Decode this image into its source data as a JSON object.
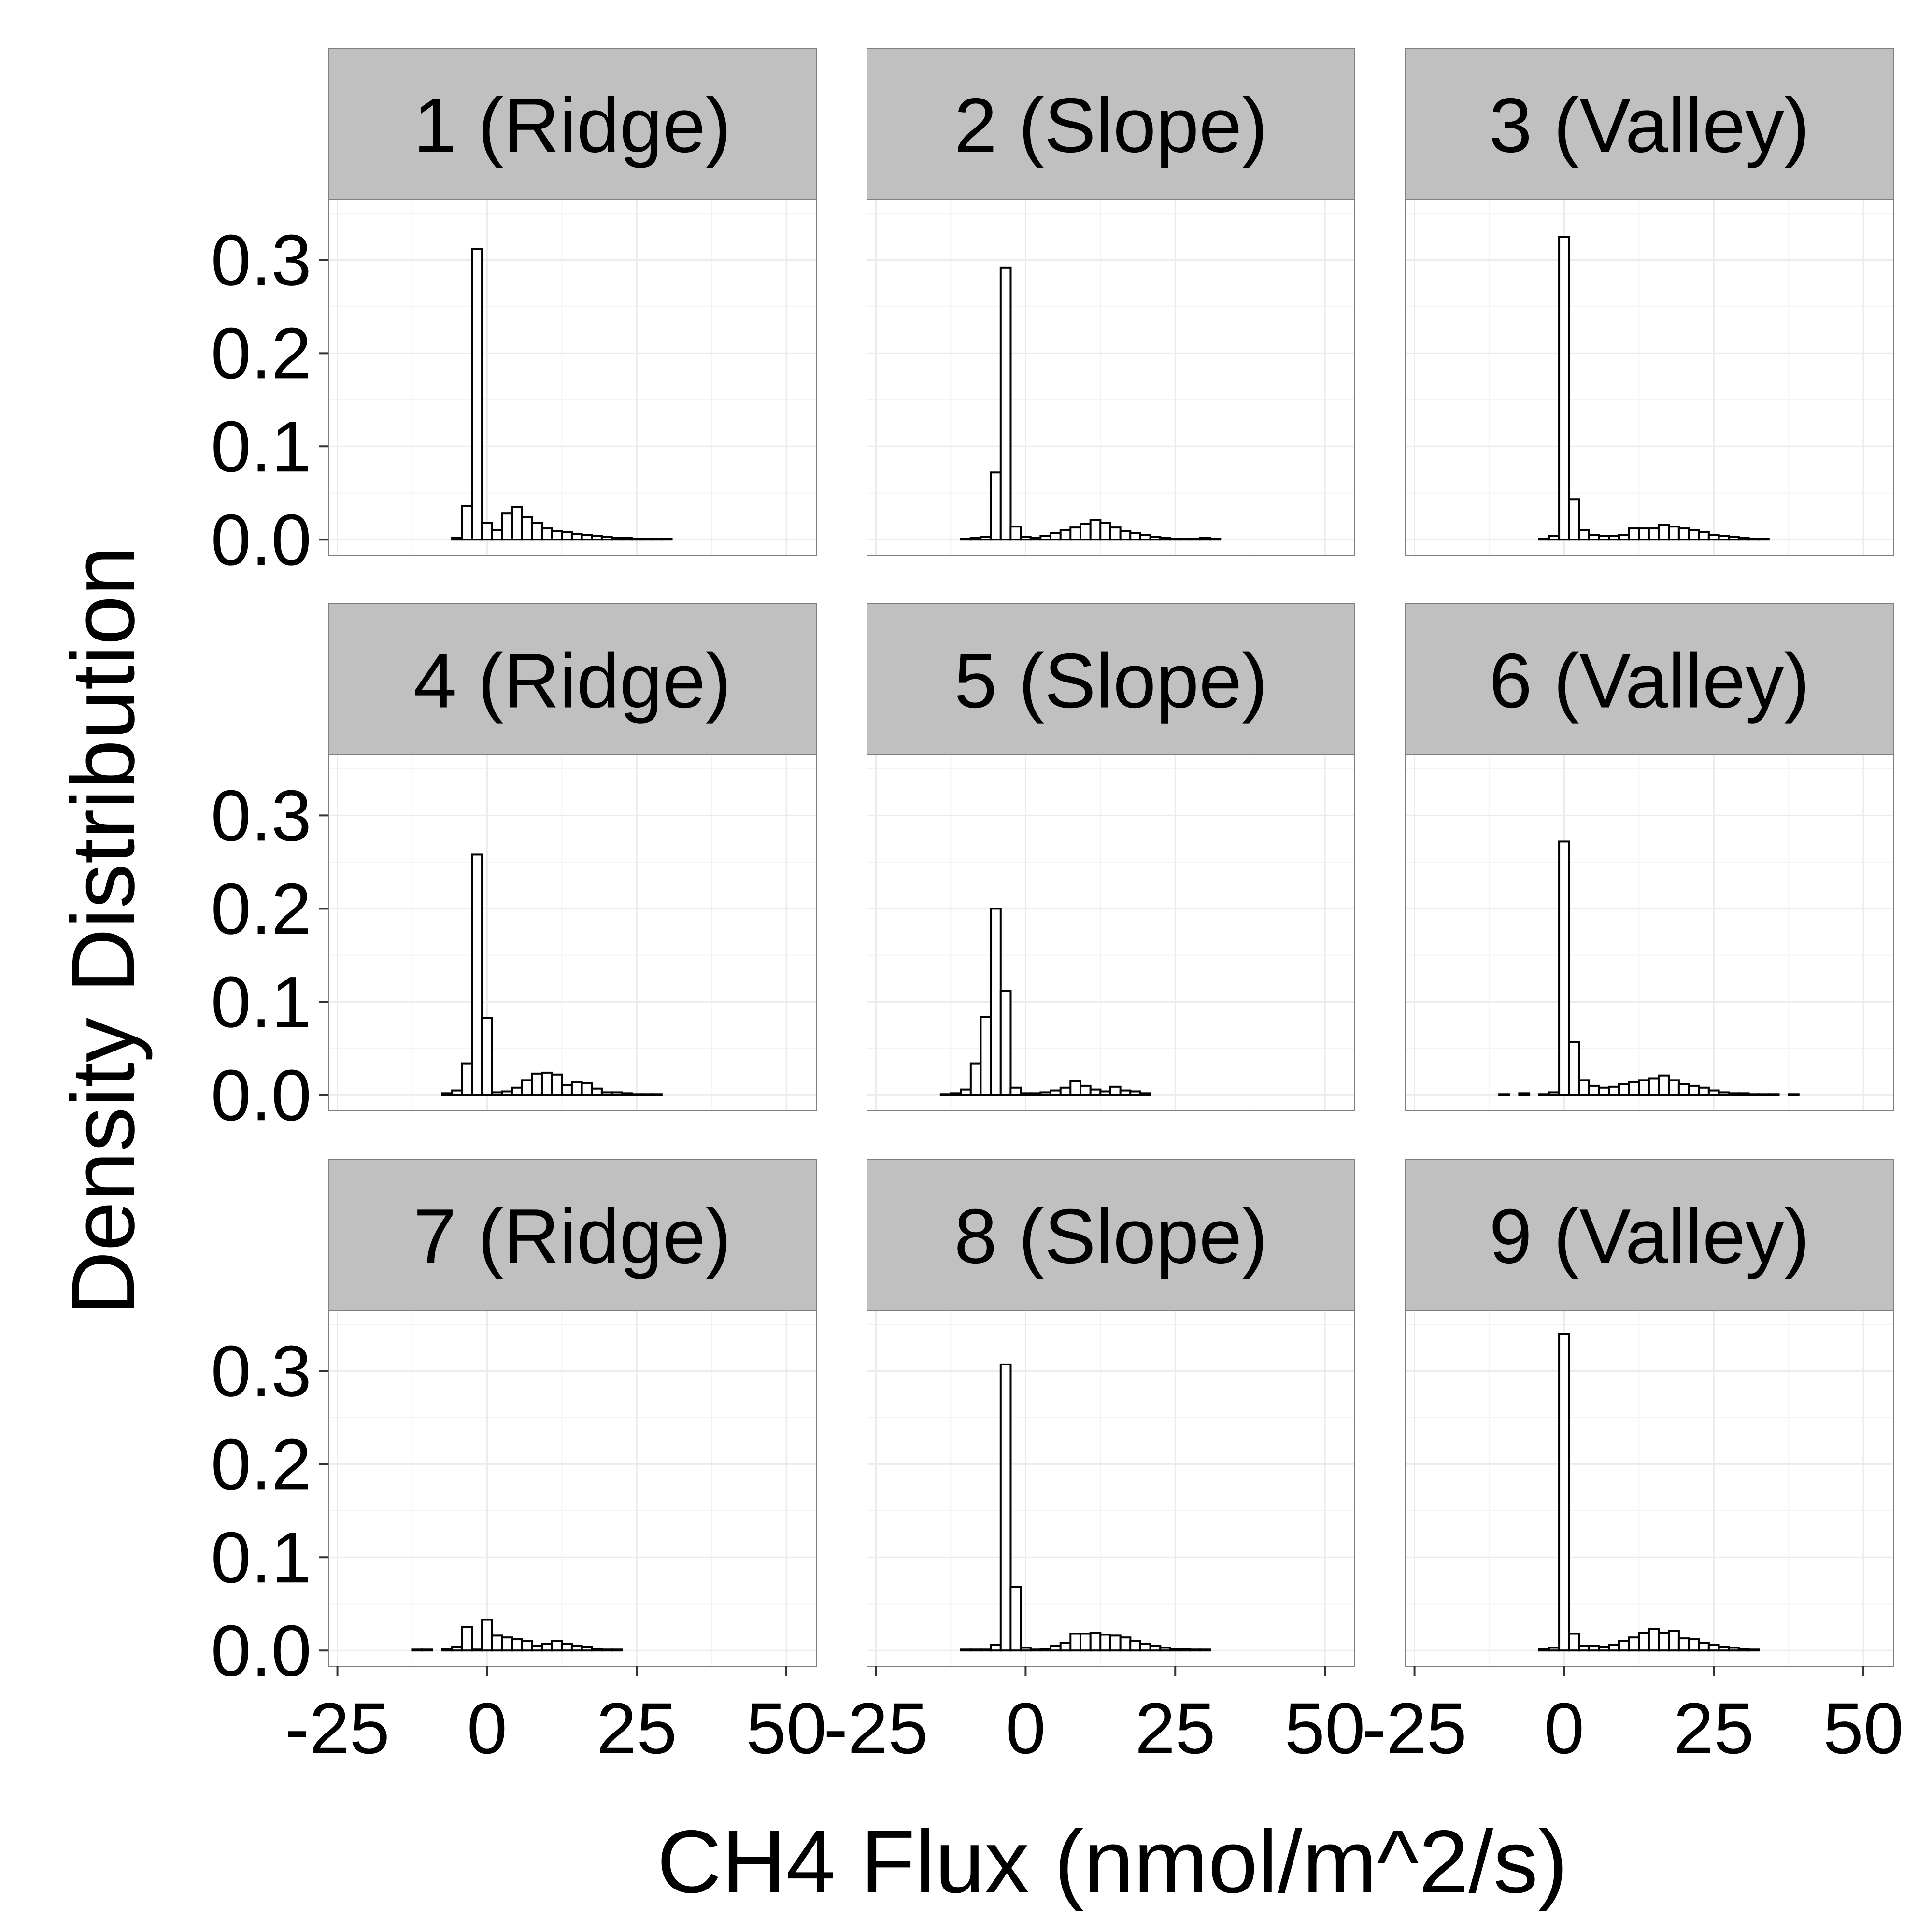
{
  "figure": {
    "xlabel": "CH4 Flux (nmol/m^2/s)",
    "ylabel": "Density Distribution",
    "x_ticks": [
      "-25",
      "0",
      "25",
      "50"
    ],
    "y_ticks": [
      "0.0",
      "0.1",
      "0.2",
      "0.3"
    ]
  },
  "colors": {
    "strip": "#c0c0c0",
    "grid": "#ebebeb",
    "bar_fill": "#ffffff",
    "bar_stroke": "#000000",
    "panel_border": "#7f7f7f"
  },
  "chart_data": [
    {
      "type": "bar",
      "panel": "1 (Ridge)",
      "bin_width": 1.67,
      "xlim": [
        -26.5,
        55
      ],
      "ylim": [
        -0.017,
        0.365
      ],
      "x": [
        -25,
        -23.33,
        -21.67,
        -20,
        -18.33,
        -16.67,
        -15,
        -13.33,
        -11.67,
        -10,
        -8.33,
        -6.67,
        -5,
        -3.33,
        -1.67,
        0,
        1.67,
        3.33,
        5,
        6.67,
        8.33,
        10,
        11.67,
        13.33,
        15,
        16.67,
        18.33,
        20,
        21.67,
        23.33,
        25,
        26.67,
        28.33,
        30,
        31.67,
        33.33,
        35,
        36.67,
        38.33,
        40,
        41.67,
        43.33,
        45,
        46.67,
        48.33,
        50
      ],
      "values": [
        0,
        0,
        0,
        0,
        0,
        0,
        0,
        0,
        0,
        0,
        0,
        0,
        0.002,
        0.036,
        0.312,
        0.018,
        0.01,
        0.028,
        0.035,
        0.024,
        0.018,
        0.012,
        0.009,
        0.008,
        0.006,
        0.005,
        0.004,
        0.003,
        0.002,
        0.002,
        0.001,
        0.001,
        0.001,
        0.001,
        0,
        0,
        0,
        0,
        0,
        0,
        0,
        0,
        0,
        0,
        0,
        0
      ]
    },
    {
      "type": "bar",
      "panel": "2 (Slope)",
      "bin_width": 1.67,
      "xlim": [
        -26.5,
        55
      ],
      "ylim": [
        -0.017,
        0.365
      ],
      "x": [
        -25,
        -23.33,
        -21.67,
        -20,
        -18.33,
        -16.67,
        -15,
        -13.33,
        -11.67,
        -10,
        -8.33,
        -6.67,
        -5,
        -3.33,
        -1.67,
        0,
        1.67,
        3.33,
        5,
        6.67,
        8.33,
        10,
        11.67,
        13.33,
        15,
        16.67,
        18.33,
        20,
        21.67,
        23.33,
        25,
        26.67,
        28.33,
        30,
        31.67,
        33.33,
        35,
        36.67,
        38.33,
        40,
        41.67,
        43.33,
        45,
        46.67,
        48.33,
        50
      ],
      "values": [
        0,
        0,
        0,
        0,
        0,
        0,
        0,
        0,
        0,
        0.001,
        0.002,
        0.003,
        0.072,
        0.292,
        0.014,
        0.003,
        0.002,
        0.004,
        0.007,
        0.01,
        0.013,
        0.017,
        0.021,
        0.018,
        0.013,
        0.009,
        0.007,
        0.005,
        0.003,
        0.002,
        0.001,
        0.001,
        0.001,
        0.002,
        0.001,
        0,
        0,
        0,
        0,
        0,
        0,
        0,
        0,
        0,
        0,
        0
      ]
    },
    {
      "type": "bar",
      "panel": "3 (Valley)",
      "bin_width": 1.67,
      "xlim": [
        -26.5,
        55
      ],
      "ylim": [
        -0.017,
        0.365
      ],
      "x": [
        -25,
        -23.33,
        -21.67,
        -20,
        -18.33,
        -16.67,
        -15,
        -13.33,
        -11.67,
        -10,
        -8.33,
        -6.67,
        -5,
        -3.33,
        -1.67,
        0,
        1.67,
        3.33,
        5,
        6.67,
        8.33,
        10,
        11.67,
        13.33,
        15,
        16.67,
        18.33,
        20,
        21.67,
        23.33,
        25,
        26.67,
        28.33,
        30,
        31.67,
        33.33,
        35,
        36.67,
        38.33,
        40,
        41.67,
        43.33,
        45,
        46.67,
        48.33,
        50
      ],
      "values": [
        0,
        0,
        0,
        0,
        0,
        0,
        0,
        0,
        0,
        0,
        0,
        0,
        0,
        0.001,
        0.004,
        0.325,
        0.043,
        0.01,
        0.005,
        0.004,
        0.004,
        0.005,
        0.012,
        0.012,
        0.012,
        0.016,
        0.014,
        0.012,
        0.01,
        0.008,
        0.005,
        0.004,
        0.003,
        0.002,
        0.001,
        0.001,
        0,
        0,
        0,
        0,
        0,
        0,
        0,
        0,
        0,
        0
      ]
    },
    {
      "type": "bar",
      "panel": "4 (Ridge)",
      "bin_width": 1.67,
      "xlim": [
        -26.5,
        55
      ],
      "ylim": [
        -0.017,
        0.365
      ],
      "x": [
        -25,
        -23.33,
        -21.67,
        -20,
        -18.33,
        -16.67,
        -15,
        -13.33,
        -11.67,
        -10,
        -8.33,
        -6.67,
        -5,
        -3.33,
        -1.67,
        0,
        1.67,
        3.33,
        5,
        6.67,
        8.33,
        10,
        11.67,
        13.33,
        15,
        16.67,
        18.33,
        20,
        21.67,
        23.33,
        25,
        26.67,
        28.33,
        30,
        31.67,
        33.33,
        35,
        36.67,
        38.33,
        40,
        41.67,
        43.33,
        45,
        46.67,
        48.33,
        50
      ],
      "values": [
        0,
        0,
        0,
        0,
        0,
        0,
        0,
        0,
        0,
        0,
        0,
        0.002,
        0.005,
        0.034,
        0.258,
        0.083,
        0.003,
        0.004,
        0.008,
        0.016,
        0.023,
        0.024,
        0.022,
        0.011,
        0.014,
        0.013,
        0.007,
        0.003,
        0.003,
        0.002,
        0.001,
        0.001,
        0.001,
        0,
        0,
        0,
        0,
        0,
        0,
        0,
        0,
        0,
        0,
        0,
        0,
        0
      ]
    },
    {
      "type": "bar",
      "panel": "5 (Slope)",
      "bin_width": 1.67,
      "xlim": [
        -26.5,
        55
      ],
      "ylim": [
        -0.017,
        0.365
      ],
      "x": [
        -25,
        -23.33,
        -21.67,
        -20,
        -18.33,
        -16.67,
        -15,
        -13.33,
        -11.67,
        -10,
        -8.33,
        -6.67,
        -5,
        -3.33,
        -1.67,
        0,
        1.67,
        3.33,
        5,
        6.67,
        8.33,
        10,
        11.67,
        13.33,
        15,
        16.67,
        18.33,
        20,
        21.67,
        23.33,
        25,
        26.67,
        28.33,
        30,
        31.67,
        33.33,
        35,
        36.67,
        38.33,
        40,
        41.67,
        43.33,
        45,
        46.67,
        48.33,
        50
      ],
      "values": [
        0,
        0,
        0,
        0,
        0,
        0,
        0,
        0.001,
        0.002,
        0.006,
        0.034,
        0.084,
        0.2,
        0.112,
        0.008,
        0.002,
        0.002,
        0.003,
        0.005,
        0.008,
        0.015,
        0.01,
        0.006,
        0.004,
        0.009,
        0.005,
        0.004,
        0.002,
        0,
        0,
        0,
        0,
        0,
        0,
        0,
        0,
        0,
        0,
        0,
        0,
        0,
        0,
        0,
        0,
        0,
        0
      ]
    },
    {
      "type": "bar",
      "panel": "6 (Valley)",
      "bin_width": 1.67,
      "xlim": [
        -26.5,
        55
      ],
      "ylim": [
        -0.017,
        0.365
      ],
      "x": [
        -25,
        -23.33,
        -21.67,
        -20,
        -18.33,
        -16.67,
        -15,
        -13.33,
        -11.67,
        -10,
        -8.33,
        -6.67,
        -5,
        -3.33,
        -1.67,
        0,
        1.67,
        3.33,
        5,
        6.67,
        8.33,
        10,
        11.67,
        13.33,
        15,
        16.67,
        18.33,
        20,
        21.67,
        23.33,
        25,
        26.67,
        28.33,
        30,
        31.67,
        33.33,
        35,
        36.67,
        38.33,
        40,
        41.67,
        43.33,
        45,
        46.67,
        48.33,
        50
      ],
      "values": [
        0,
        0,
        0,
        0,
        0,
        0,
        0,
        0,
        0,
        0.001,
        0,
        0.002,
        0,
        0.001,
        0.003,
        0.272,
        0.057,
        0.016,
        0.01,
        0.008,
        0.009,
        0.012,
        0.014,
        0.016,
        0.018,
        0.021,
        0.016,
        0.012,
        0.01,
        0.008,
        0.005,
        0.003,
        0.002,
        0.002,
        0.001,
        0.001,
        0.001,
        0,
        0.001,
        0,
        0,
        0,
        0,
        0,
        0,
        0
      ]
    },
    {
      "type": "bar",
      "panel": "7 (Ridge)",
      "bin_width": 1.67,
      "xlim": [
        -26.5,
        55
      ],
      "ylim": [
        -0.017,
        0.365
      ],
      "x": [
        -25,
        -23.33,
        -21.67,
        -20,
        -18.33,
        -16.67,
        -15,
        -13.33,
        -11.67,
        -10,
        -8.33,
        -6.67,
        -5,
        -3.33,
        -1.67,
        0,
        1.67,
        3.33,
        5,
        6.67,
        8.33,
        10,
        11.67,
        13.33,
        15,
        16.67,
        18.33,
        20,
        21.67,
        23.33,
        25,
        26.67,
        28.33,
        30,
        31.67,
        33.33,
        35,
        36.67,
        38.33,
        40,
        41.67,
        43.33,
        45,
        46.67,
        48.33,
        50
      ],
      "values": [
        0,
        0,
        0,
        0,
        0,
        0,
        0,
        0,
        0.001,
        0.001,
        0,
        0.002,
        0.004,
        0.025,
        0.001,
        0.033,
        0.016,
        0.014,
        0.012,
        0.01,
        0.005,
        0.007,
        0.01,
        0.007,
        0.005,
        0.004,
        0.002,
        0.001,
        0.001,
        0,
        0,
        0,
        0,
        0,
        0,
        0,
        0,
        0,
        0,
        0,
        0,
        0,
        0,
        0,
        0,
        0
      ]
    },
    {
      "type": "bar",
      "panel": "8 (Slope)",
      "bin_width": 1.67,
      "xlim": [
        -26.5,
        55
      ],
      "ylim": [
        -0.017,
        0.365
      ],
      "x": [
        -25,
        -23.33,
        -21.67,
        -20,
        -18.33,
        -16.67,
        -15,
        -13.33,
        -11.67,
        -10,
        -8.33,
        -6.67,
        -5,
        -3.33,
        -1.67,
        0,
        1.67,
        3.33,
        5,
        6.67,
        8.33,
        10,
        11.67,
        13.33,
        15,
        16.67,
        18.33,
        20,
        21.67,
        23.33,
        25,
        26.67,
        28.33,
        30,
        31.67,
        33.33,
        35,
        36.67,
        38.33,
        40,
        41.67,
        43.33,
        45,
        46.67,
        48.33,
        50
      ],
      "values": [
        0,
        0,
        0,
        0,
        0,
        0,
        0,
        0,
        0,
        0.001,
        0.001,
        0.001,
        0.006,
        0.307,
        0.068,
        0.003,
        0.001,
        0.002,
        0.005,
        0.008,
        0.018,
        0.018,
        0.019,
        0.017,
        0.016,
        0.014,
        0.01,
        0.007,
        0.005,
        0.003,
        0.002,
        0.002,
        0.001,
        0.001,
        0,
        0,
        0,
        0,
        0,
        0,
        0,
        0,
        0,
        0,
        0,
        0
      ]
    },
    {
      "type": "bar",
      "panel": "9 (Valley)",
      "bin_width": 1.67,
      "xlim": [
        -26.5,
        55
      ],
      "ylim": [
        -0.017,
        0.365
      ],
      "x": [
        -25,
        -23.33,
        -21.67,
        -20,
        -18.33,
        -16.67,
        -15,
        -13.33,
        -11.67,
        -10,
        -8.33,
        -6.67,
        -5,
        -3.33,
        -1.67,
        0,
        1.67,
        3.33,
        5,
        6.67,
        8.33,
        10,
        11.67,
        13.33,
        15,
        16.67,
        18.33,
        20,
        21.67,
        23.33,
        25,
        26.67,
        28.33,
        30,
        31.67,
        33.33,
        35,
        36.67,
        38.33,
        40,
        41.67,
        43.33,
        45,
        46.67,
        48.33,
        50
      ],
      "values": [
        0,
        0,
        0,
        0,
        0,
        0,
        0,
        0,
        0,
        0,
        0,
        0,
        0,
        0.002,
        0.003,
        0.34,
        0.018,
        0.005,
        0.005,
        0.004,
        0.006,
        0.01,
        0.014,
        0.019,
        0.023,
        0.019,
        0.021,
        0.013,
        0.012,
        0.008,
        0.006,
        0.004,
        0.003,
        0.002,
        0.001,
        0,
        0,
        0,
        0,
        0,
        0,
        0,
        0,
        0,
        0,
        0
      ]
    }
  ]
}
